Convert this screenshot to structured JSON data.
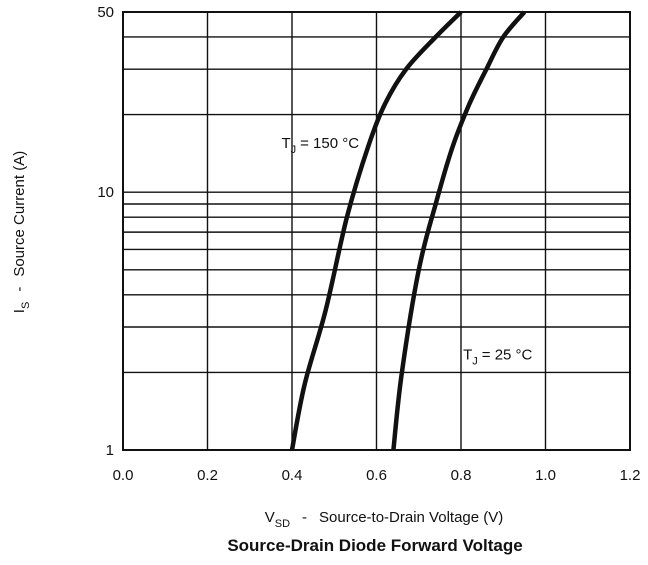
{
  "chart_data": {
    "type": "line",
    "title": "Source-Drain Diode Forward Voltage",
    "xlabel": {
      "symbol": "V",
      "subscript": "SD",
      "text": "Source-to-Drain Voltage (V)",
      "separator": "-"
    },
    "ylabel": {
      "symbol": "I",
      "subscript": "S",
      "text": "Source Current (A)",
      "separator": "-"
    },
    "x_scale": "linear",
    "y_scale": "log",
    "xlim": [
      0.0,
      1.2
    ],
    "ylim": [
      1,
      50
    ],
    "x_ticks": [
      0.0,
      0.2,
      0.4,
      0.6,
      0.8,
      1.0,
      1.2
    ],
    "x_tick_labels": [
      "0.0",
      "0.2",
      "0.4",
      "0.6",
      "0.8",
      "1.0",
      "1.2"
    ],
    "y_tick_labels": [
      {
        "value": 1,
        "label": "1"
      },
      {
        "value": 10,
        "label": "10"
      },
      {
        "value": 50,
        "label": "50"
      }
    ],
    "y_gridlines": [
      2,
      3,
      4,
      5,
      6,
      7,
      8,
      9,
      10,
      20,
      30,
      40,
      50
    ],
    "grid": true,
    "series": [
      {
        "name": "T_J = 150 °C",
        "x": [
          0.4,
          0.43,
          0.48,
          0.53,
          0.58,
          0.62,
          0.67,
          0.74,
          0.8
        ],
        "y": [
          1,
          1.8,
          3.5,
          8,
          15,
          22,
          30,
          40,
          50
        ]
      },
      {
        "name": "T_J = 25 °C",
        "x": [
          0.64,
          0.66,
          0.7,
          0.74,
          0.78,
          0.82,
          0.86,
          0.9,
          0.95
        ],
        "y": [
          1,
          2,
          5,
          9,
          15,
          22,
          30,
          40,
          50
        ]
      }
    ],
    "annotations": [
      {
        "symbol": "T",
        "subscript": "J",
        "text": "= 150 °C",
        "x": 0.375,
        "y": 15.5
      },
      {
        "symbol": "T",
        "subscript": "J",
        "text": "= 25 °C",
        "x": 0.805,
        "y": 2.35
      }
    ]
  }
}
